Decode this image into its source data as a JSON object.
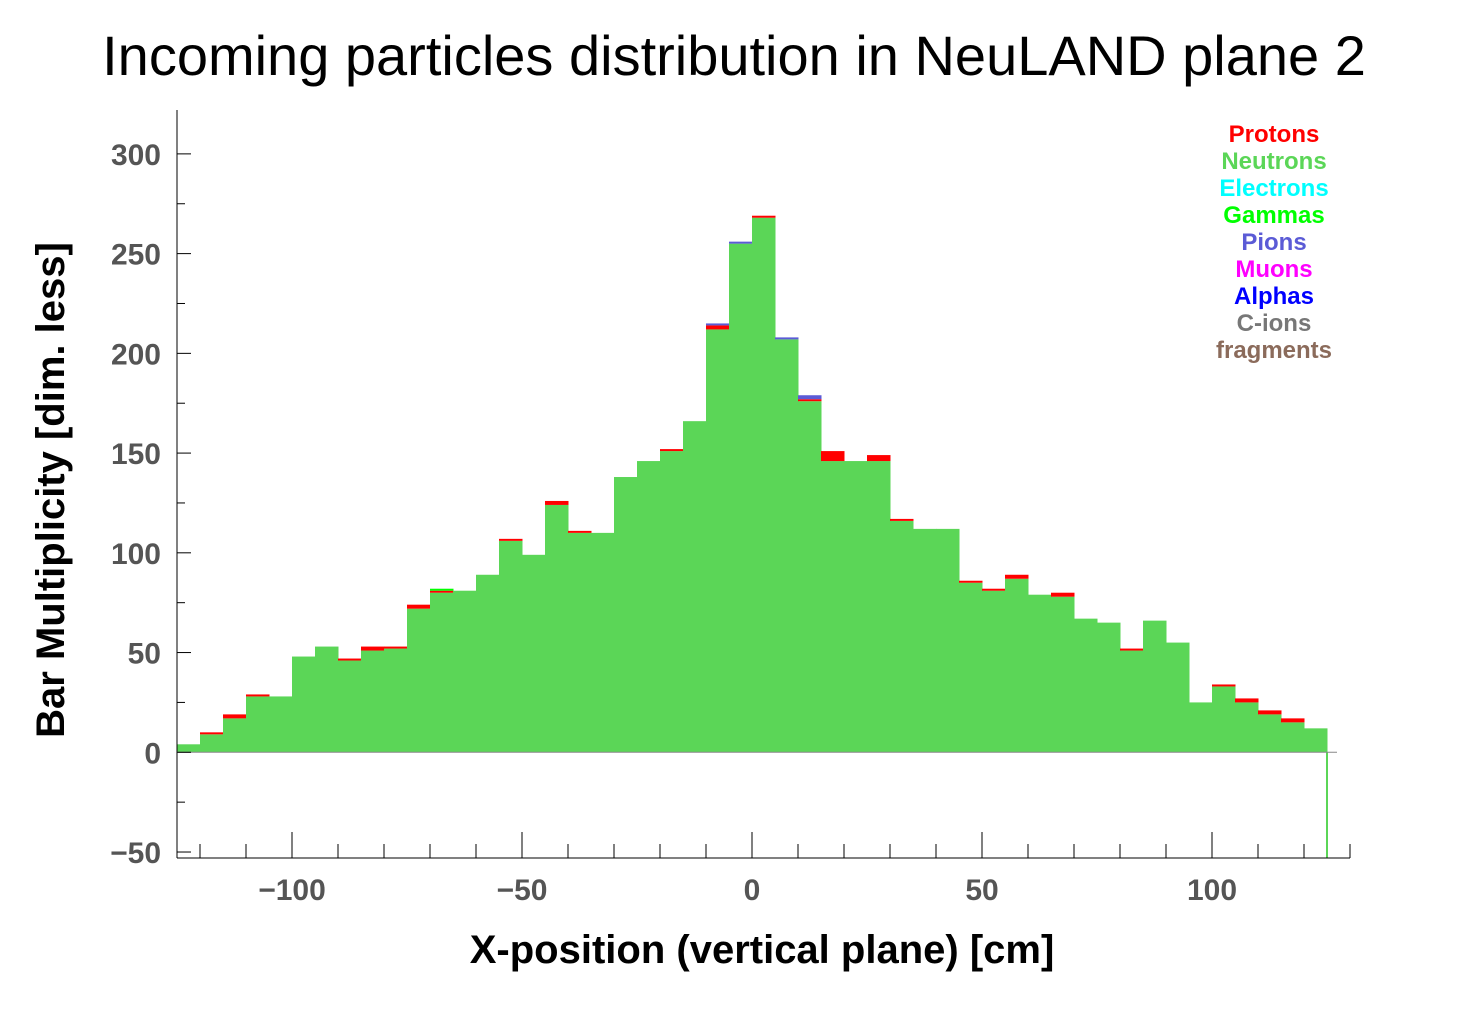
{
  "chart_data": {
    "type": "bar",
    "title": "Incoming particles distribution in NeuLAND plane 2",
    "xlabel": "X-position (vertical plane) [cm]",
    "ylabel": "Bar Multiplicity [dim. less]",
    "xlim": [
      -125,
      130
    ],
    "ylim": [
      -53,
      322
    ],
    "x_ticks": [
      {
        "value": -100,
        "label": "−100"
      },
      {
        "value": -50,
        "label": "−50"
      },
      {
        "value": 0,
        "label": "0"
      },
      {
        "value": 50,
        "label": "50"
      },
      {
        "value": 100,
        "label": "100"
      }
    ],
    "y_ticks": [
      {
        "value": -50,
        "label": "−50"
      },
      {
        "value": 0,
        "label": "0"
      },
      {
        "value": 50,
        "label": "50"
      },
      {
        "value": 100,
        "label": "100"
      },
      {
        "value": 150,
        "label": "150"
      },
      {
        "value": 200,
        "label": "200"
      },
      {
        "value": 250,
        "label": "250"
      },
      {
        "value": 300,
        "label": "300"
      }
    ],
    "bin_width": 5,
    "bin_starts": [
      -125,
      -120,
      -115,
      -110,
      -105,
      -100,
      -95,
      -90,
      -85,
      -80,
      -75,
      -70,
      -65,
      -60,
      -55,
      -50,
      -45,
      -40,
      -35,
      -30,
      -25,
      -20,
      -15,
      -10,
      -5,
      0,
      5,
      10,
      15,
      20,
      25,
      30,
      35,
      40,
      45,
      50,
      55,
      60,
      65,
      70,
      75,
      80,
      85,
      90,
      95,
      100,
      105,
      110,
      115,
      120
    ],
    "neutrons": [
      4,
      9,
      17,
      28,
      28,
      48,
      53,
      46,
      51,
      52,
      72,
      80,
      81,
      89,
      106,
      99,
      124,
      110,
      110,
      138,
      146,
      151,
      166,
      212,
      255,
      268,
      207,
      176,
      146,
      146,
      146,
      116,
      112,
      112,
      85,
      81,
      87,
      79,
      78,
      67,
      65,
      51,
      66,
      55,
      25,
      33,
      25,
      19,
      15,
      12
    ],
    "protons": [
      0,
      1,
      2,
      1,
      0,
      0,
      0,
      1,
      2,
      1,
      2,
      1,
      0,
      0,
      1,
      0,
      2,
      1,
      0,
      0,
      0,
      1,
      0,
      2,
      0,
      1,
      0,
      1,
      5,
      0,
      3,
      1,
      0,
      0,
      1,
      1,
      2,
      0,
      2,
      0,
      0,
      1,
      0,
      0,
      0,
      1,
      2,
      2,
      2,
      0
    ],
    "pions": [
      0,
      0,
      0,
      0,
      0,
      0,
      0,
      0,
      0,
      0,
      0,
      0,
      0,
      0,
      0,
      0,
      0,
      0,
      0,
      0,
      0,
      0,
      0,
      1,
      1,
      0,
      1,
      2,
      0,
      0,
      0,
      0,
      0,
      0,
      0,
      0,
      0,
      0,
      0,
      0,
      0,
      0,
      0,
      0,
      0,
      0,
      0,
      0,
      0,
      0
    ],
    "gammas": [
      0,
      0,
      0,
      0,
      0,
      0,
      0,
      0,
      0,
      0,
      0,
      1,
      0,
      0,
      0,
      0,
      0,
      0,
      0,
      0,
      0,
      0,
      0,
      0,
      0,
      0,
      0,
      0,
      0,
      0,
      0,
      0,
      0,
      0,
      0,
      0,
      0,
      0,
      0,
      0,
      0,
      0,
      0,
      0,
      0,
      0,
      0,
      0,
      0,
      0
    ],
    "tail": {
      "x": 125,
      "value": -53
    },
    "legend_position": "top-right",
    "legend": [
      {
        "name": "Protons",
        "color": "#ff0000"
      },
      {
        "name": "Neutrons",
        "color": "#5bd657"
      },
      {
        "name": "Electrons",
        "color": "#00ffff"
      },
      {
        "name": "Gammas",
        "color": "#00ff00"
      },
      {
        "name": "Pions",
        "color": "#5b5bd6"
      },
      {
        "name": "Muons",
        "color": "#ff00ff"
      },
      {
        "name": "Alphas",
        "color": "#0000ff"
      },
      {
        "name": "C-ions",
        "color": "#777777"
      },
      {
        "name": "fragments",
        "color": "#8b6b5b"
      }
    ],
    "colors": {
      "neutrons": "#5bd657",
      "protons": "#ff0000",
      "pions": "#5b5bd6",
      "gammas": "#00ff00",
      "axis": "#000000"
    }
  }
}
